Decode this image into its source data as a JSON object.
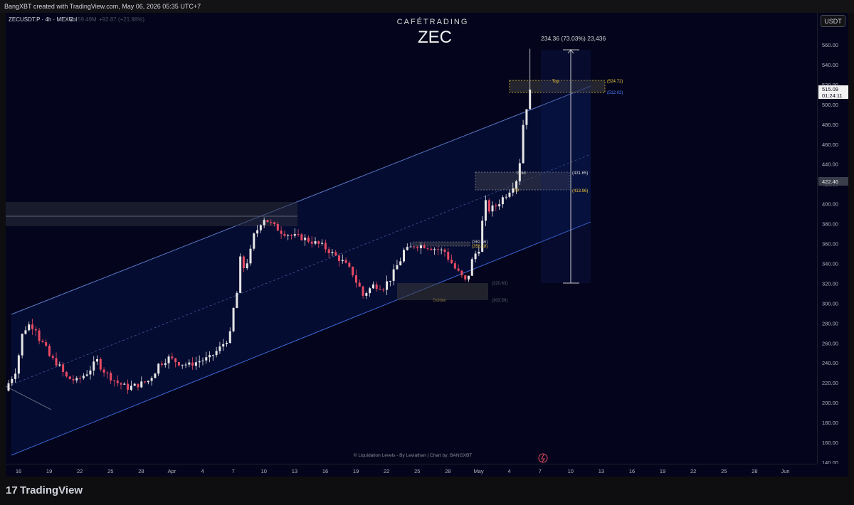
{
  "header": {
    "text": "BangXBT created with TradingView.com, May 06, 2026 05:35 UTC+7"
  },
  "legend": {
    "symbol": "ZECUSDT.P · 4h · MEXC",
    "vol_label": "Vol",
    "vol_value": "59.49M",
    "vol_change": "+92.87 (+21.98%)"
  },
  "watermark": {
    "brand": "CAFÉTRADING",
    "ticker": "ZEC"
  },
  "unit_button": "USDT",
  "price_tags": {
    "current_price": "515.09",
    "countdown": "01:24:11",
    "level_tag": "422.46"
  },
  "measure": {
    "label": "234.36 (73.03%) 23,436"
  },
  "footer_credit": "© Liquidation Levels - By Leviathan | Chart by: BANGXBT",
  "brand_logo": "TradingView",
  "colors": {
    "background": "#04051c",
    "up": "#e6e6e6",
    "down": "#e84a63",
    "channel": "#3d5a9e",
    "top_zone_label": "#f0c93a",
    "gold_label": "#d8d8d8",
    "golden_label": "#8a7440"
  },
  "chart_data": {
    "type": "candlestick",
    "y_axis": {
      "ylim": [
        140,
        570
      ],
      "tick_labels": [
        "140.00",
        "160.00",
        "180.00",
        "200.00",
        "220.00",
        "240.00",
        "260.00",
        "280.00",
        "300.00",
        "320.00",
        "340.00",
        "360.00",
        "380.00",
        "400.00",
        "420.00",
        "440.00",
        "460.00",
        "480.00",
        "500.00",
        "520.00",
        "540.00",
        "560.00"
      ]
    },
    "x_axis": {
      "tick_labels": [
        "16",
        "19",
        "22",
        "25",
        "28",
        "Apr",
        "4",
        "7",
        "10",
        "13",
        "16",
        "19",
        "22",
        "25",
        "28",
        "May",
        "4",
        "7",
        "10",
        "13",
        "16",
        "19",
        "22",
        "25",
        "28",
        "Jun"
      ]
    },
    "price_path": [
      [
        "16",
        212
      ],
      [
        "17",
        235
      ],
      [
        "18",
        280
      ],
      [
        "19",
        275
      ],
      [
        "20",
        250
      ],
      [
        "21",
        240
      ],
      [
        "22",
        225
      ],
      [
        "23",
        222
      ],
      [
        "24",
        230
      ],
      [
        "25",
        242
      ],
      [
        "26",
        228
      ],
      [
        "27",
        220
      ],
      [
        "28",
        215
      ],
      [
        "29",
        218
      ],
      [
        "30",
        222
      ],
      [
        "31",
        238
      ],
      [
        "Apr 1",
        245
      ],
      [
        "Apr 2",
        240
      ],
      [
        "Apr 3",
        238
      ],
      [
        "Apr 4",
        242
      ],
      [
        "Apr 5",
        245
      ],
      [
        "Apr 6",
        255
      ],
      [
        "Apr 7",
        268
      ],
      [
        "Apr 8",
        330
      ],
      [
        "Apr 9",
        350
      ],
      [
        "Apr 10",
        388
      ],
      [
        "Apr 11",
        380
      ],
      [
        "Apr 12",
        372
      ],
      [
        "Apr 13",
        368
      ],
      [
        "Apr 14",
        366
      ],
      [
        "Apr 15",
        362
      ],
      [
        "Apr 16",
        358
      ],
      [
        "Apr 17",
        350
      ],
      [
        "Apr 18",
        342
      ],
      [
        "Apr 19",
        330
      ],
      [
        "Apr 20",
        308
      ],
      [
        "Apr 21",
        318
      ],
      [
        "Apr 22",
        316
      ],
      [
        "Apr 23",
        330
      ],
      [
        "Apr 24",
        352
      ],
      [
        "Apr 25",
        358
      ],
      [
        "Apr 26",
        358
      ],
      [
        "Apr 27",
        355
      ],
      [
        "Apr 28",
        352
      ],
      [
        "Apr 29",
        335
      ],
      [
        "Apr 30",
        322
      ],
      [
        "May 1",
        350
      ],
      [
        "May 2",
        392
      ],
      [
        "May 3",
        398
      ],
      [
        "May 4",
        410
      ],
      [
        "May 5",
        425
      ],
      [
        "May 6",
        515
      ]
    ],
    "annotations": {
      "levels": [
        {
          "label": "Top",
          "value": "(524.72)"
        },
        {
          "label": "",
          "value": "(512.02)"
        },
        {
          "label": "Gold",
          "value": "(431.65)"
        },
        {
          "label": "TP",
          "value": "(413.96)"
        },
        {
          "label": "",
          "value": "(362.66)"
        },
        {
          "label": "",
          "value": "(358.18)"
        },
        {
          "label": "",
          "value": "(320.63)"
        },
        {
          "label": "Golden",
          "value": "(303.56)"
        }
      ]
    },
    "grid": false
  }
}
